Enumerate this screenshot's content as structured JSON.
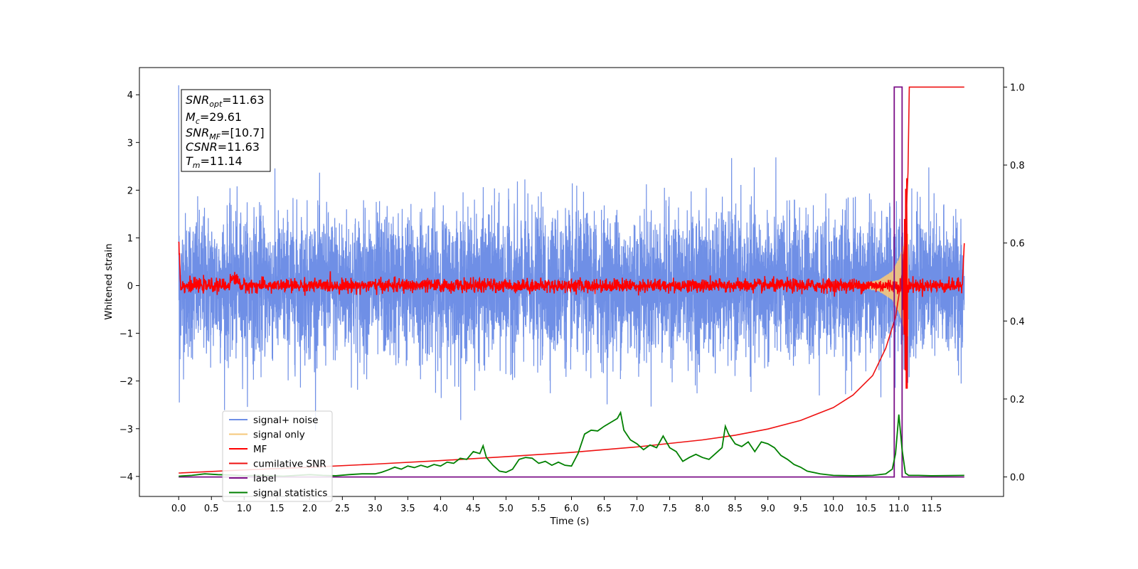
{
  "chart_data": {
    "type": "line",
    "xlabel": "Time (s)",
    "ylabel": "Whitened strain",
    "xlim": [
      -0.6,
      12.6
    ],
    "ylim": [
      -4.42,
      4.57
    ],
    "ylim_right": [
      -0.05,
      1.05
    ],
    "x_ticks": [
      "0.0",
      "0.5",
      "1.0",
      "1.5",
      "2.0",
      "2.5",
      "3.0",
      "3.5",
      "4.0",
      "4.5",
      "5.0",
      "5.5",
      "6.0",
      "6.5",
      "7.0",
      "7.5",
      "8.0",
      "8.5",
      "9.0",
      "9.5",
      "10.0",
      "10.5",
      "11.0",
      "11.5"
    ],
    "y_ticks": [
      "4",
      "3",
      "2",
      "1",
      "0",
      "−1",
      "−2",
      "−3",
      "−4"
    ],
    "y_ticks_right": [
      "1.0",
      "0.8",
      "0.6",
      "0.4",
      "0.2",
      "0.0"
    ],
    "legend": {
      "placement": "lower-left",
      "entries": [
        "signal+ noise",
        "signal only",
        "MF",
        "cumilative SNR",
        "label",
        "signal statistics"
      ]
    },
    "stats_box": {
      "snr_opt": {
        "sym": "SNR",
        "sub": "opt",
        "value": "=11.63"
      },
      "mc": {
        "sym": "M",
        "sub": "c",
        "value": "=29.61"
      },
      "snr_mf": {
        "sym": "SNR",
        "sub": "MF",
        "value": "=[10.7]"
      },
      "csnr": {
        "sym": "CSNR",
        "sub": "",
        "value": "=11.63"
      },
      "tm": {
        "sym": "T",
        "sub": "m",
        "value": "=11.14"
      }
    },
    "series": [
      {
        "name": "signal+ noise",
        "axis": "left",
        "color": "#6f8fe6",
        "amplitude_sd": 0.75,
        "x_range": [
          0.0,
          12.0
        ]
      },
      {
        "name": "signal only",
        "axis": "left",
        "color": "#f5c77a",
        "envelope": [
          [
            10.5,
            0.05
          ],
          [
            10.7,
            0.12
          ],
          [
            10.9,
            0.3
          ],
          [
            11.0,
            0.55
          ],
          [
            11.05,
            0.75
          ],
          [
            11.1,
            1.0
          ],
          [
            11.14,
            1.1
          ]
        ]
      },
      {
        "name": "MF",
        "axis": "left",
        "color": "#ff0000",
        "amplitude_sd": 0.07,
        "start_value": 1.0,
        "end_value": 0.9,
        "spike": [
          11.12,
          2.35
        ]
      },
      {
        "name": "cumilative SNR",
        "axis": "right",
        "color": "#ee1111",
        "x": [
          0.0,
          1.0,
          2.0,
          3.0,
          4.0,
          5.0,
          6.0,
          7.0,
          8.0,
          8.5,
          9.0,
          9.5,
          10.0,
          10.3,
          10.6,
          10.8,
          10.95,
          11.05,
          11.1,
          11.14,
          11.16,
          12.0
        ],
        "y": [
          0.01,
          0.018,
          0.025,
          0.033,
          0.042,
          0.052,
          0.063,
          0.077,
          0.095,
          0.107,
          0.123,
          0.145,
          0.178,
          0.21,
          0.26,
          0.33,
          0.41,
          0.52,
          0.62,
          0.78,
          1.0,
          1.0
        ]
      },
      {
        "name": "label",
        "axis": "right",
        "color": "#7b0f87",
        "x": [
          0.0,
          10.93,
          10.93,
          11.05,
          11.05,
          11.14,
          11.14,
          11.2,
          11.2,
          11.5,
          11.5,
          12.0
        ],
        "y": [
          0.0,
          0.0,
          1.0,
          1.0,
          0.0,
          0.0,
          0.0,
          0.0,
          0.0,
          0.0,
          0.0,
          0.0
        ]
      },
      {
        "name": "signal statistics",
        "axis": "right",
        "color": "#008000",
        "x": [
          0.0,
          0.2,
          0.4,
          0.6,
          0.8,
          1.0,
          1.2,
          1.4,
          1.6,
          1.8,
          2.0,
          2.2,
          2.4,
          2.6,
          2.8,
          3.0,
          3.1,
          3.2,
          3.3,
          3.4,
          3.5,
          3.6,
          3.7,
          3.8,
          3.9,
          4.0,
          4.1,
          4.2,
          4.3,
          4.4,
          4.5,
          4.6,
          4.65,
          4.7,
          4.8,
          4.9,
          5.0,
          5.1,
          5.2,
          5.3,
          5.4,
          5.5,
          5.6,
          5.7,
          5.8,
          5.9,
          6.0,
          6.1,
          6.2,
          6.3,
          6.4,
          6.5,
          6.6,
          6.7,
          6.75,
          6.8,
          6.9,
          7.0,
          7.1,
          7.2,
          7.3,
          7.4,
          7.5,
          7.6,
          7.7,
          7.8,
          7.9,
          8.0,
          8.1,
          8.2,
          8.3,
          8.35,
          8.4,
          8.5,
          8.6,
          8.7,
          8.8,
          8.9,
          9.0,
          9.1,
          9.2,
          9.3,
          9.4,
          9.5,
          9.6,
          9.8,
          10.0,
          10.3,
          10.6,
          10.8,
          10.9,
          10.95,
          11.0,
          11.05,
          11.1,
          11.15,
          11.2,
          11.3,
          11.5,
          12.0
        ],
        "y": [
          0.002,
          0.004,
          0.008,
          0.006,
          0.005,
          0.003,
          0.004,
          0.003,
          0.002,
          0.004,
          0.006,
          0.004,
          0.003,
          0.006,
          0.008,
          0.008,
          0.012,
          0.018,
          0.025,
          0.02,
          0.028,
          0.024,
          0.03,
          0.025,
          0.032,
          0.028,
          0.038,
          0.035,
          0.048,
          0.045,
          0.065,
          0.06,
          0.08,
          0.05,
          0.03,
          0.015,
          0.012,
          0.02,
          0.045,
          0.05,
          0.048,
          0.035,
          0.04,
          0.03,
          0.038,
          0.03,
          0.028,
          0.06,
          0.11,
          0.12,
          0.118,
          0.13,
          0.14,
          0.15,
          0.165,
          0.12,
          0.095,
          0.085,
          0.07,
          0.082,
          0.075,
          0.105,
          0.075,
          0.065,
          0.04,
          0.05,
          0.058,
          0.05,
          0.045,
          0.06,
          0.075,
          0.13,
          0.11,
          0.085,
          0.078,
          0.09,
          0.065,
          0.09,
          0.085,
          0.075,
          0.055,
          0.045,
          0.032,
          0.025,
          0.015,
          0.008,
          0.004,
          0.003,
          0.004,
          0.008,
          0.02,
          0.06,
          0.16,
          0.07,
          0.01,
          0.004,
          0.004,
          0.004,
          0.003,
          0.004
        ]
      }
    ]
  }
}
